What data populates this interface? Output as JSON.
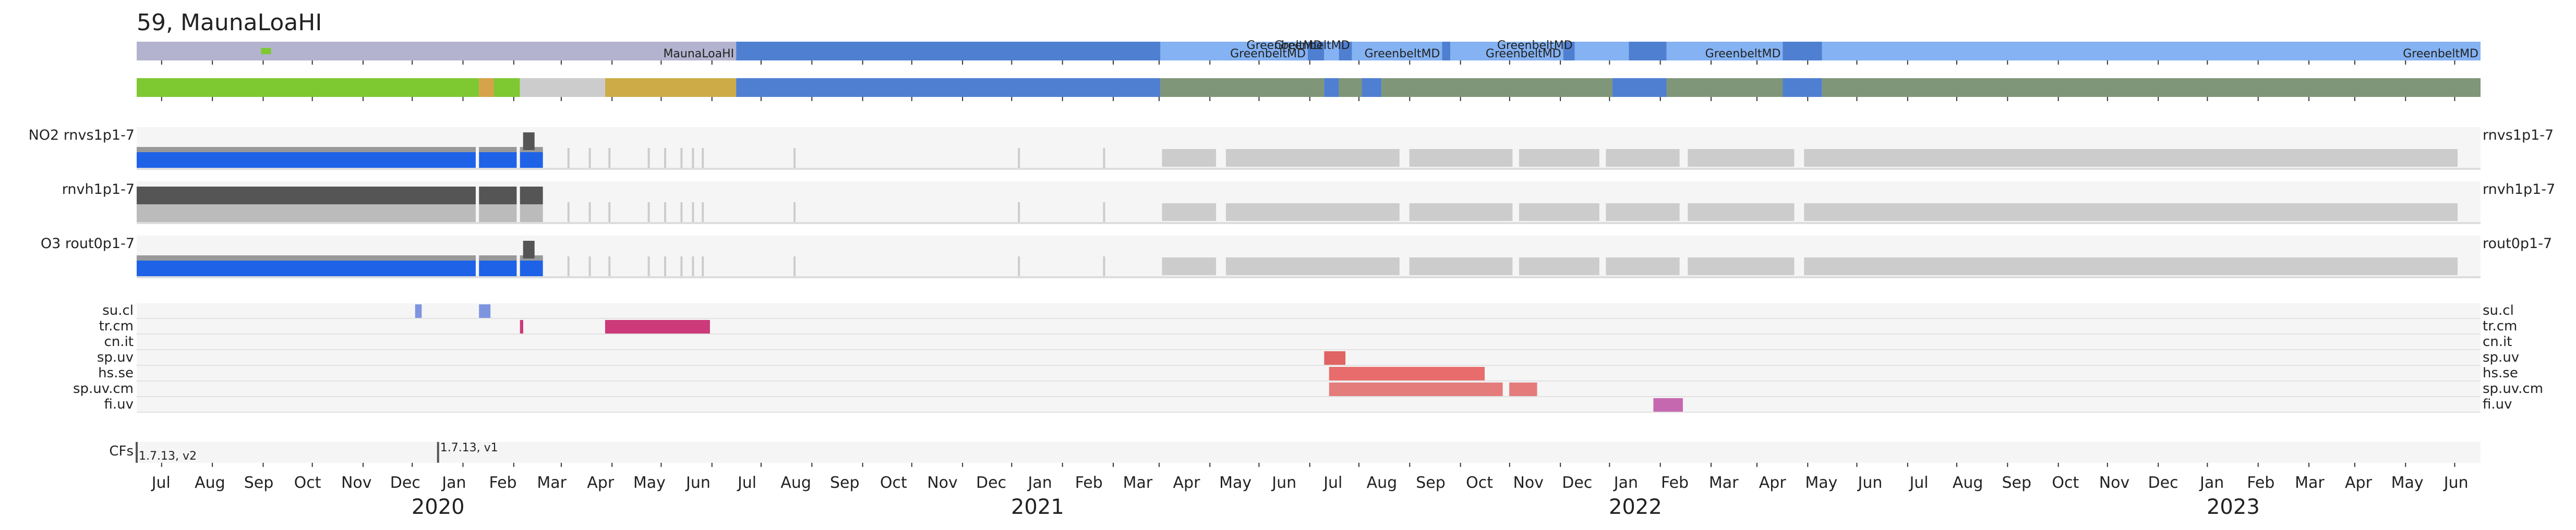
{
  "title": "59, MaunaLoaHI",
  "chart_data": {
    "type": "timeline",
    "title": "59, MaunaLoaHI",
    "x_range": [
      "2019-07-01",
      "2023-06-01"
    ],
    "location_bar": [
      {
        "start": "2019-07-01",
        "end": "2020-07-01",
        "label": "MaunaLoaHI",
        "color": "#b3b3cf"
      },
      {
        "start": "2020-07-01",
        "end": "2021-03-17",
        "label": "",
        "color": "#4f7fd1"
      },
      {
        "start": "2021-03-17",
        "end": "2021-06-15",
        "label": "GreenbeltMD",
        "color": "#84b2f2"
      },
      {
        "start": "2021-06-15",
        "end": "2021-06-25",
        "label": "GreenbeltMD",
        "color": "#4f7fd1"
      },
      {
        "start": "2021-06-25",
        "end": "2021-07-04",
        "label": "",
        "color": "#84b2f2"
      },
      {
        "start": "2021-07-04",
        "end": "2021-07-12",
        "label": "GreenbeltMD",
        "color": "#4f7fd1"
      },
      {
        "start": "2021-07-12",
        "end": "2021-09-05",
        "label": "GreenbeltMD",
        "color": "#84b2f2"
      },
      {
        "start": "2021-09-05",
        "end": "2021-09-10",
        "label": "",
        "color": "#4f7fd1"
      },
      {
        "start": "2021-09-10",
        "end": "2021-11-18",
        "label": "GreenbeltMD",
        "color": "#84b2f2"
      },
      {
        "start": "2021-11-18",
        "end": "2021-11-25",
        "label": "GreenbeltMD",
        "color": "#4f7fd1"
      },
      {
        "start": "2021-11-25",
        "end": "2021-12-28",
        "label": "",
        "color": "#84b2f2"
      },
      {
        "start": "2021-12-28",
        "end": "2022-01-20",
        "label": "",
        "color": "#4f7fd1"
      },
      {
        "start": "2022-01-20",
        "end": "2022-04-01",
        "label": "GreenbeltMD",
        "color": "#84b2f2"
      },
      {
        "start": "2022-04-01",
        "end": "2022-04-25",
        "label": "",
        "color": "#4f7fd1"
      },
      {
        "start": "2022-04-25",
        "end": "2023-06-01",
        "label": "GreenbeltMD",
        "color": "#84b2f2"
      }
    ],
    "status_bar": [
      {
        "start": "2019-07-01",
        "end": "2020-01-26",
        "color": "#7ec832"
      },
      {
        "start": "2020-01-26",
        "end": "2020-02-04",
        "color": "#d6a24a"
      },
      {
        "start": "2020-02-04",
        "end": "2020-02-20",
        "color": "#7ec832"
      },
      {
        "start": "2020-02-20",
        "end": "2020-04-12",
        "color": "#cccccc"
      },
      {
        "start": "2020-04-12",
        "end": "2020-07-01",
        "color": "#cdac48"
      },
      {
        "start": "2020-07-01",
        "end": "2021-03-17",
        "color": "#4f7fd1"
      },
      {
        "start": "2021-03-17",
        "end": "2021-06-25",
        "color": "#7f9678"
      },
      {
        "start": "2021-06-25",
        "end": "2021-07-04",
        "color": "#4f7fd1"
      },
      {
        "start": "2021-07-04",
        "end": "2021-07-18",
        "color": "#7f9678"
      },
      {
        "start": "2021-07-18",
        "end": "2021-07-30",
        "color": "#4f7fd1"
      },
      {
        "start": "2021-07-30",
        "end": "2021-12-18",
        "color": "#7f9678"
      },
      {
        "start": "2021-12-18",
        "end": "2022-01-20",
        "color": "#4f7fd1"
      },
      {
        "start": "2022-01-20",
        "end": "2022-04-01",
        "color": "#7f9678"
      },
      {
        "start": "2022-04-01",
        "end": "2022-04-25",
        "color": "#4f7fd1"
      },
      {
        "start": "2022-04-25",
        "end": "2023-06-01",
        "color": "#7f9678"
      }
    ],
    "data_rows": [
      {
        "left_label": "NO2  rnvs1p1-7",
        "right_label": "rnvs1p1-7",
        "dark_color": "#555555",
        "fill_color": "#1e62e8"
      },
      {
        "left_label": "rnvh1p1-7",
        "right_label": "rnvh1p1-7",
        "dark_color": "#555555",
        "fill_color": "#bbbbbb"
      },
      {
        "left_label": "O3  rout0p1-7",
        "right_label": "rout0p1-7",
        "dark_color": "#555555",
        "fill_color": "#1e62e8"
      }
    ],
    "data_periods": [
      {
        "start": "2019-07-01",
        "end": "2020-01-24"
      },
      {
        "start": "2020-01-26",
        "end": "2020-02-18"
      },
      {
        "start": "2020-02-20",
        "end": "2020-03-05"
      }
    ],
    "gray_periods": [
      {
        "start": "2021-03-18",
        "end": "2021-04-20"
      },
      {
        "start": "2021-04-26",
        "end": "2021-08-10"
      },
      {
        "start": "2021-08-16",
        "end": "2021-10-18"
      },
      {
        "start": "2021-10-22",
        "end": "2021-12-10"
      },
      {
        "start": "2021-12-14",
        "end": "2022-01-28"
      },
      {
        "start": "2022-02-02",
        "end": "2022-04-08"
      },
      {
        "start": "2022-04-14",
        "end": "2023-05-18"
      }
    ],
    "flag_rows": [
      {
        "label": "su.cl",
        "segments": [
          {
            "start": "2019-12-18",
            "end": "2019-12-22",
            "color": "#7d94e0"
          },
          {
            "start": "2020-01-26",
            "end": "2020-02-02",
            "color": "#7d94e0"
          }
        ]
      },
      {
        "label": "tr.cm",
        "segments": [
          {
            "start": "2020-02-20",
            "end": "2020-02-22",
            "color": "#cc3a7a"
          },
          {
            "start": "2020-04-12",
            "end": "2020-06-15",
            "color": "#cc3a7a"
          }
        ]
      },
      {
        "label": "cn.it",
        "segments": []
      },
      {
        "label": "sp.uv",
        "segments": [
          {
            "start": "2021-06-25",
            "end": "2021-07-08",
            "color": "#e06464"
          }
        ]
      },
      {
        "label": "hs.se",
        "segments": [
          {
            "start": "2021-06-28",
            "end": "2021-10-01",
            "color": "#e86c6c"
          }
        ]
      },
      {
        "label": "sp.uv.cm",
        "segments": [
          {
            "start": "2021-06-28",
            "end": "2021-10-12",
            "color": "#e47c7c"
          },
          {
            "start": "2021-10-16",
            "end": "2021-11-02",
            "color": "#e47c7c"
          }
        ]
      },
      {
        "label": "fi.uv",
        "segments": [
          {
            "start": "2022-01-12",
            "end": "2022-01-30",
            "color": "#c668b0"
          }
        ]
      }
    ],
    "cf_row": {
      "label": "CFs",
      "annotations": [
        {
          "date": "2019-07-01",
          "text": "1.7.13, v2"
        },
        {
          "date": "2020-01-01",
          "text": "1.7.13, v1"
        }
      ]
    },
    "month_labels": [
      "Jul",
      "Aug",
      "Sep",
      "Oct",
      "Nov",
      "Dec",
      "Jan",
      "Feb",
      "Mar",
      "Apr",
      "May",
      "Jun",
      "Jul",
      "Aug",
      "Sep",
      "Oct",
      "Nov",
      "Dec",
      "Jan",
      "Feb",
      "Mar",
      "Apr",
      "May",
      "Jun",
      "Jul",
      "Aug",
      "Sep",
      "Oct",
      "Nov",
      "Dec",
      "Jan",
      "Feb",
      "Mar",
      "Apr",
      "May",
      "Jun",
      "Jul",
      "Aug",
      "Sep",
      "Oct",
      "Nov",
      "Dec",
      "Jan",
      "Feb",
      "Mar",
      "Apr",
      "May",
      "Jun"
    ],
    "year_labels": [
      {
        "date": "2020-01-01",
        "label": "2020"
      },
      {
        "date": "2021-01-01",
        "label": "2021"
      },
      {
        "date": "2022-01-01",
        "label": "2022"
      },
      {
        "date": "2023-01-01",
        "label": "2023"
      }
    ],
    "colors": {
      "panel_background": "#f5f5f5",
      "gap_gray": "#cccccc",
      "text": "#222222"
    }
  }
}
